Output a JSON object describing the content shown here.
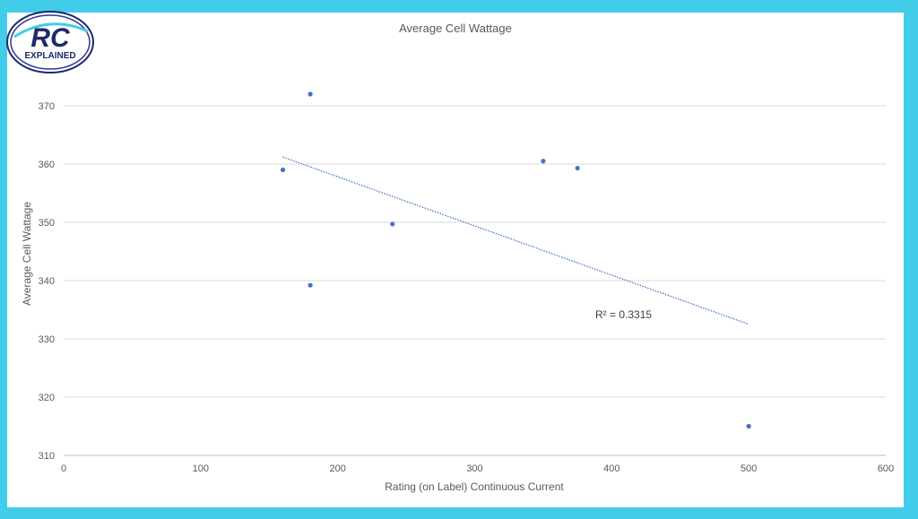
{
  "logo": {
    "text_main": "RC",
    "text_sub": "EXPLAINED"
  },
  "colors": {
    "background": "#41cdea",
    "point": "#4472c4",
    "trendline": "#4472c4",
    "gridline": "#d9d9d9"
  },
  "chart_data": {
    "type": "scatter",
    "title": "Average Cell Wattage",
    "xlabel": "Rating (on Label) Continuous Current",
    "ylabel": "Average Cell Wattage",
    "xlim": [
      0,
      600
    ],
    "ylim": [
      310,
      370
    ],
    "xticks": [
      "0",
      "100",
      "200",
      "300",
      "400",
      "500",
      "600"
    ],
    "yticks": [
      "310",
      "320",
      "330",
      "340",
      "350",
      "360",
      "370"
    ],
    "grid": "horizontal",
    "series": [
      {
        "x": [
          160,
          180,
          180,
          240,
          350,
          375,
          500
        ],
        "y": [
          359,
          372,
          339.2,
          349.7,
          360.5,
          359.3,
          315
        ]
      }
    ],
    "trendline": {
      "type": "linear",
      "x": [
        160,
        500
      ],
      "y": [
        361.2,
        332.5
      ],
      "label": "R² = 0.3315"
    }
  }
}
